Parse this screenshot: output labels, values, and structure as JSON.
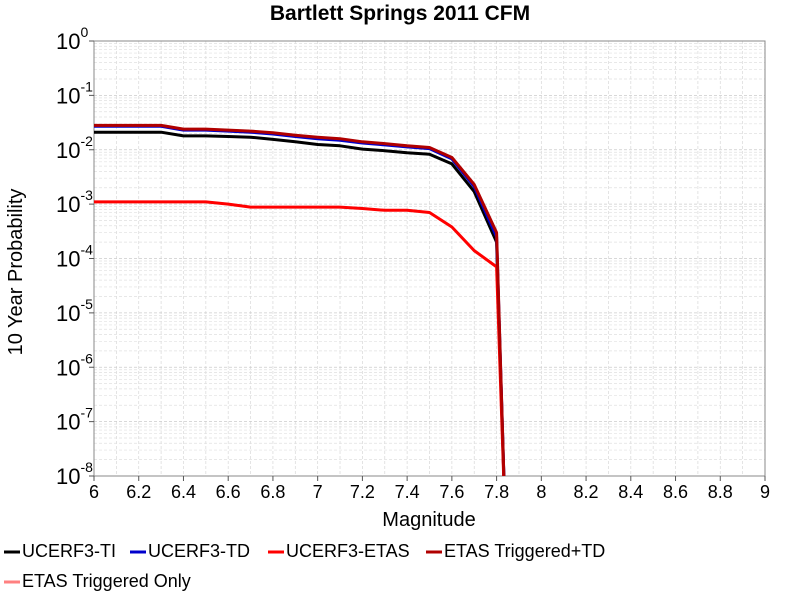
{
  "chart_data": {
    "type": "line",
    "title": "Bartlett Springs 2011 CFM",
    "xlabel": "Magnitude",
    "ylabel": "10 Year Probability",
    "xlim": [
      6,
      9
    ],
    "ylim": [
      1e-08,
      1
    ],
    "yscale": "log",
    "grid": true,
    "legend_position": "bottom",
    "x_ticks": [
      "6",
      "6.2",
      "6.4",
      "6.6",
      "6.8",
      "7",
      "7.2",
      "7.4",
      "7.6",
      "7.8",
      "8",
      "8.2",
      "8.4",
      "8.6",
      "8.8",
      "9"
    ],
    "y_ticks": [
      {
        "base": "10",
        "exp": "0",
        "value": 1
      },
      {
        "base": "10",
        "exp": "-1",
        "value": 0.1
      },
      {
        "base": "10",
        "exp": "-2",
        "value": 0.01
      },
      {
        "base": "10",
        "exp": "-3",
        "value": 0.001
      },
      {
        "base": "10",
        "exp": "-4",
        "value": 0.0001
      },
      {
        "base": "10",
        "exp": "-5",
        "value": 1e-05
      },
      {
        "base": "10",
        "exp": "-6",
        "value": 1e-06
      },
      {
        "base": "10",
        "exp": "-7",
        "value": 1e-07
      },
      {
        "base": "10",
        "exp": "-8",
        "value": 1e-08
      }
    ],
    "series": [
      {
        "name": "UCERF3-TI",
        "color": "#000000",
        "x": [
          6.0,
          6.1,
          6.2,
          6.3,
          6.4,
          6.5,
          6.6,
          6.7,
          6.8,
          6.9,
          7.0,
          7.1,
          7.2,
          7.3,
          7.4,
          7.5,
          7.6,
          7.7,
          7.8,
          7.84
        ],
        "y": [
          0.021,
          0.021,
          0.021,
          0.021,
          0.018,
          0.018,
          0.0175,
          0.017,
          0.0155,
          0.014,
          0.0125,
          0.0118,
          0.0103,
          0.0096,
          0.0088,
          0.0083,
          0.0055,
          0.0017,
          0.0002,
          1e-09
        ]
      },
      {
        "name": "UCERF3-TD",
        "color": "#0000cc",
        "x": [
          6.0,
          6.1,
          6.2,
          6.3,
          6.4,
          6.5,
          6.6,
          6.7,
          6.8,
          6.9,
          7.0,
          7.1,
          7.2,
          7.3,
          7.4,
          7.5,
          7.6,
          7.7,
          7.8,
          7.84
        ],
        "y": [
          0.027,
          0.027,
          0.027,
          0.027,
          0.023,
          0.023,
          0.022,
          0.021,
          0.0195,
          0.0175,
          0.016,
          0.015,
          0.0133,
          0.0123,
          0.0113,
          0.0105,
          0.0068,
          0.0021,
          0.00025,
          1e-09
        ]
      },
      {
        "name": "UCERF3-ETAS",
        "color": "#ff0000",
        "x": [
          6.0,
          6.1,
          6.2,
          6.3,
          6.4,
          6.5,
          6.6,
          6.7,
          6.8,
          6.9,
          7.0,
          7.1,
          7.2,
          7.3,
          7.4,
          7.5,
          7.6,
          7.7,
          7.8,
          7.84
        ],
        "y": [
          0.0011,
          0.0011,
          0.0011,
          0.0011,
          0.0011,
          0.0011,
          0.001,
          0.00088,
          0.00088,
          0.00088,
          0.00088,
          0.00088,
          0.00083,
          0.00077,
          0.00077,
          0.0007,
          0.00038,
          0.00014,
          7e-05,
          1e-09
        ]
      },
      {
        "name": "ETAS Triggered+TD",
        "color": "#b00000",
        "x": [
          6.0,
          6.1,
          6.2,
          6.3,
          6.4,
          6.5,
          6.6,
          6.7,
          6.8,
          6.9,
          7.0,
          7.1,
          7.2,
          7.3,
          7.4,
          7.5,
          7.6,
          7.7,
          7.8,
          7.84
        ],
        "y": [
          0.028,
          0.028,
          0.028,
          0.028,
          0.024,
          0.024,
          0.023,
          0.022,
          0.0205,
          0.0185,
          0.017,
          0.016,
          0.014,
          0.013,
          0.0118,
          0.011,
          0.0072,
          0.0023,
          0.0003,
          1e-09
        ]
      },
      {
        "name": "ETAS Triggered Only",
        "color": "#ff8080",
        "x": [],
        "y": []
      }
    ]
  },
  "legend": {
    "items": [
      {
        "label": "UCERF3-TI",
        "color": "#000000"
      },
      {
        "label": "UCERF3-TD",
        "color": "#0000cc"
      },
      {
        "label": "UCERF3-ETAS",
        "color": "#ff0000"
      },
      {
        "label": "ETAS Triggered+TD",
        "color": "#b00000"
      },
      {
        "label": "ETAS Triggered Only",
        "color": "#ff8080"
      }
    ]
  }
}
